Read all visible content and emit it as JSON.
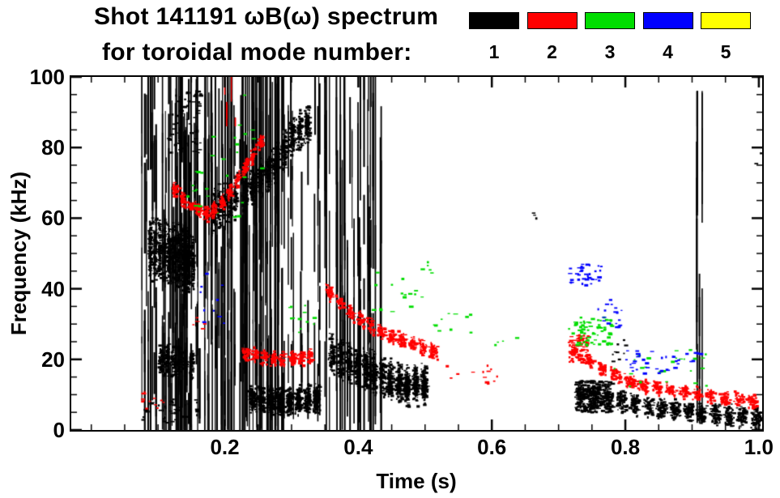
{
  "chart_data": {
    "type": "scatter",
    "title": "Shot 141191 ωB(ω) spectrum",
    "subtitle": "for toroidal mode number:",
    "xlabel": "Time (s)",
    "ylabel": "Frequency (kHz)",
    "xlim": [
      -0.03,
      1.005
    ],
    "ylim": [
      0,
      100
    ],
    "grid": false,
    "legend_position": "top-right",
    "xticks": {
      "values": [
        0.2,
        0.4,
        0.6,
        0.8,
        1.0
      ],
      "labels": [
        "0.2",
        "0.4",
        "0.6",
        "0.8",
        "1.0"
      ],
      "minor_step": 0.05
    },
    "yticks": {
      "values": [
        0,
        20,
        40,
        60,
        80,
        100
      ],
      "labels": [
        "0",
        "20",
        "40",
        "60",
        "80",
        "100"
      ],
      "minor_step": 5
    },
    "legend": [
      {
        "label": "1",
        "color": "#000000"
      },
      {
        "label": "2",
        "color": "#ff0000"
      },
      {
        "label": "3",
        "color": "#00dd00"
      },
      {
        "label": "4",
        "color": "#0000ff"
      },
      {
        "label": "5",
        "color": "#ffff00"
      }
    ],
    "series": [
      {
        "name": "toroidal-mode-1",
        "mode": "1",
        "color": "#000000",
        "features": [
          {
            "kind": "vstreaks",
            "t": [
              0.075,
              0.18
            ],
            "f": [
              0,
              100
            ],
            "count": 55,
            "segs": [
              2,
              6
            ],
            "seglen": [
              5,
              45
            ]
          },
          {
            "kind": "vstreaks",
            "t": [
              0.18,
              0.285
            ],
            "f": [
              0,
              100
            ],
            "count": 60,
            "segs": [
              2,
              5
            ],
            "seglen": [
              8,
              70
            ]
          },
          {
            "kind": "vstreaks",
            "t": [
              0.285,
              0.345
            ],
            "f": [
              0,
              100
            ],
            "count": 16,
            "segs": [
              1,
              4
            ],
            "seglen": [
              5,
              30
            ]
          },
          {
            "kind": "band",
            "pts": [
              [
                0.085,
                52
              ],
              [
                0.12,
                50
              ],
              [
                0.155,
                48
              ]
            ],
            "width": 20,
            "count": 900,
            "clump": 10
          },
          {
            "kind": "band",
            "pts": [
              [
                0.1,
                20
              ],
              [
                0.155,
                19
              ]
            ],
            "width": 10,
            "count": 300,
            "clump": 6
          },
          {
            "kind": "blobs",
            "t": [
              0.075,
              0.16
            ],
            "f": [
              2,
              9
            ],
            "count": 40
          },
          {
            "kind": "blobs",
            "t": [
              0.115,
              0.165
            ],
            "f": [
              78,
              96
            ],
            "count": 60
          },
          {
            "kind": "band",
            "pts": [
              [
                0.18,
                62
              ],
              [
                0.22,
                66
              ]
            ],
            "width": 14,
            "count": 250,
            "clump": 5
          },
          {
            "kind": "band",
            "pts": [
              [
                0.225,
                66
              ],
              [
                0.27,
                74
              ],
              [
                0.305,
                84
              ],
              [
                0.33,
                87
              ]
            ],
            "width": 12,
            "count": 800,
            "clump": 9
          },
          {
            "kind": "band",
            "pts": [
              [
                0.235,
                9
              ],
              [
                0.29,
                8
              ],
              [
                0.345,
                9
              ]
            ],
            "width": 9,
            "count": 900,
            "clump": 8
          },
          {
            "kind": "vstreaks",
            "t": [
              0.345,
              0.435
            ],
            "f": [
              0,
              100
            ],
            "count": 30,
            "segs": [
              2,
              5
            ],
            "seglen": [
              8,
              60
            ]
          },
          {
            "kind": "band",
            "pts": [
              [
                0.355,
                22
              ],
              [
                0.4,
                18
              ],
              [
                0.44,
                15
              ],
              [
                0.475,
                13
              ],
              [
                0.505,
                13
              ]
            ],
            "width": 13,
            "count": 1100,
            "clump": 12
          },
          {
            "kind": "band",
            "pts": [
              [
                0.44,
                13
              ],
              [
                0.505,
                12
              ]
            ],
            "width": 6,
            "count": 250,
            "clump": 5
          },
          {
            "kind": "band",
            "pts": [
              [
                0.725,
                10
              ],
              [
                0.78,
                8.5
              ],
              [
                0.84,
                6.5
              ],
              [
                0.9,
                5
              ],
              [
                0.96,
                4
              ],
              [
                1.005,
                3.5
              ]
            ],
            "width": 7,
            "count": 1000,
            "clump": 14
          },
          {
            "kind": "blobs",
            "t": [
              0.725,
              0.78
            ],
            "f": [
              5,
              14
            ],
            "count": 250
          },
          {
            "kind": "vstreaks",
            "t": [
              0.905,
              0.915
            ],
            "f": [
              2,
              96
            ],
            "count": 4,
            "segs": [
              3,
              6
            ],
            "seglen": [
              10,
              40
            ]
          },
          {
            "kind": "blobs",
            "t": [
              0.78,
              0.8
            ],
            "f": [
              15,
              26
            ],
            "count": 10
          },
          {
            "kind": "blobs",
            "t": [
              0.99,
              1.02
            ],
            "f": [
              74,
              79
            ],
            "count": 4
          },
          {
            "kind": "blobs",
            "t": [
              0.655,
              0.67
            ],
            "f": [
              60,
              66
            ],
            "count": 3
          }
        ]
      },
      {
        "name": "toroidal-mode-2",
        "mode": "2",
        "color": "#ff0000",
        "features": [
          {
            "kind": "blobs",
            "t": [
              0.075,
              0.11
            ],
            "f": [
              6,
              11
            ],
            "count": 12
          },
          {
            "kind": "band",
            "pts": [
              [
                0.12,
                69
              ],
              [
                0.15,
                63
              ],
              [
                0.175,
                61
              ],
              [
                0.2,
                65
              ],
              [
                0.23,
                74
              ],
              [
                0.26,
                83
              ]
            ],
            "width": 5,
            "count": 450,
            "clump": 12
          },
          {
            "kind": "vstreaks",
            "t": [
              0.195,
              0.215
            ],
            "f": [
              86,
              100
            ],
            "count": 4,
            "segs": [
              1,
              2
            ],
            "seglen": [
              4,
              10
            ]
          },
          {
            "kind": "band",
            "pts": [
              [
                0.225,
                22
              ],
              [
                0.27,
                20
              ],
              [
                0.335,
                21
              ]
            ],
            "width": 5,
            "count": 300,
            "clump": 8
          },
          {
            "kind": "band",
            "pts": [
              [
                0.35,
                40
              ],
              [
                0.39,
                33
              ],
              [
                0.43,
                28
              ],
              [
                0.47,
                25
              ],
              [
                0.52,
                22
              ]
            ],
            "width": 5,
            "count": 450,
            "clump": 11
          },
          {
            "kind": "blobs",
            "t": [
              0.53,
              0.61
            ],
            "f": [
              13,
              19
            ],
            "count": 14
          },
          {
            "kind": "band",
            "pts": [
              [
                0.715,
                24
              ],
              [
                0.75,
                19
              ],
              [
                0.79,
                15
              ],
              [
                0.83,
                12.5
              ],
              [
                0.88,
                11
              ],
              [
                0.93,
                9.5
              ],
              [
                1.0,
                8
              ]
            ],
            "width": 4.5,
            "count": 600,
            "clump": 14
          },
          {
            "kind": "blobs",
            "t": [
              0.715,
              0.745
            ],
            "f": [
              19,
              27
            ],
            "count": 60
          },
          {
            "kind": "blobs",
            "t": [
              0.15,
              0.17
            ],
            "f": [
              28,
              33
            ],
            "count": 5
          }
        ]
      },
      {
        "name": "toroidal-mode-3",
        "mode": "3",
        "color": "#00dd00",
        "features": [
          {
            "kind": "blobs",
            "t": [
              0.14,
              0.175
            ],
            "f": [
              58,
              74
            ],
            "count": 12
          },
          {
            "kind": "blobs",
            "t": [
              0.175,
              0.26
            ],
            "f": [
              55,
              96
            ],
            "count": 18
          },
          {
            "kind": "blobs",
            "t": [
              0.295,
              0.335
            ],
            "f": [
              27,
              36
            ],
            "count": 12
          },
          {
            "kind": "blobs",
            "t": [
              0.42,
              0.5
            ],
            "f": [
              32,
              46
            ],
            "count": 16
          },
          {
            "kind": "blobs",
            "t": [
              0.5,
              0.58
            ],
            "f": [
              27,
              34
            ],
            "count": 10
          },
          {
            "kind": "blobs",
            "t": [
              0.475,
              0.52
            ],
            "f": [
              44,
              48
            ],
            "count": 5
          },
          {
            "kind": "blobs",
            "t": [
              0.6,
              0.64
            ],
            "f": [
              23,
              27
            ],
            "count": 4
          },
          {
            "kind": "blobs",
            "t": [
              0.715,
              0.78
            ],
            "f": [
              24,
              32
            ],
            "count": 70
          },
          {
            "kind": "blobs",
            "t": [
              0.78,
              0.93
            ],
            "f": [
              12,
              23
            ],
            "count": 25
          }
        ]
      },
      {
        "name": "toroidal-mode-4",
        "mode": "4",
        "color": "#0000ff",
        "features": [
          {
            "kind": "blobs",
            "t": [
              0.16,
              0.225
            ],
            "f": [
              29,
              46
            ],
            "count": 10
          },
          {
            "kind": "blobs",
            "t": [
              0.715,
              0.765
            ],
            "f": [
              41,
              47
            ],
            "count": 35
          },
          {
            "kind": "blobs",
            "t": [
              0.755,
              0.795
            ],
            "f": [
              29,
              37
            ],
            "count": 18
          },
          {
            "kind": "blobs",
            "t": [
              0.8,
              0.88
            ],
            "f": [
              16,
              23
            ],
            "count": 30
          },
          {
            "kind": "blobs",
            "t": [
              0.88,
              0.93
            ],
            "f": [
              18,
              22
            ],
            "count": 6
          }
        ]
      },
      {
        "name": "toroidal-mode-5",
        "mode": "5",
        "color": "#ffff00",
        "features": []
      }
    ]
  }
}
